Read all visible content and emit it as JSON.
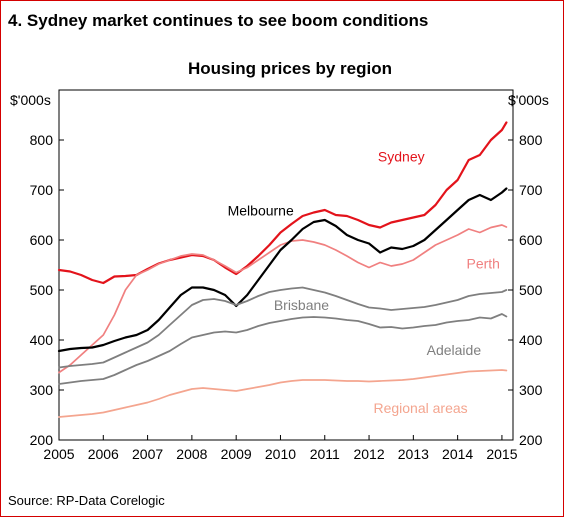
{
  "header": {
    "title": "4. Sydney market continues to see boom conditions"
  },
  "footer": {
    "source": "Source: RP-Data Corelogic"
  },
  "colors": {
    "frame": "#d40000",
    "sydney": "#e3131b",
    "perth": "#f08080",
    "melbourne": "#000000",
    "brisbane": "#7f7f7f",
    "adelaide": "#7f7f7f",
    "regional": "#f4a58f"
  },
  "chart_data": {
    "type": "line",
    "title": "Housing prices by region",
    "y_unit_left": "$'000s",
    "y_unit_right": "$'000s",
    "xlim": [
      2005,
      2015.25
    ],
    "ylim": [
      200,
      900
    ],
    "x_ticks": [
      "2005",
      "2006",
      "2007",
      "2008",
      "2009",
      "2010",
      "2011",
      "2012",
      "2013",
      "2014",
      "2015"
    ],
    "y_ticks": [
      "200",
      "300",
      "400",
      "500",
      "600",
      "700",
      "800"
    ],
    "grid": false,
    "series": [
      {
        "name": "Sydney",
        "color": "#e3131b",
        "width": 2.2,
        "points": [
          [
            2005,
            540
          ],
          [
            2005.25,
            537
          ],
          [
            2005.5,
            530
          ],
          [
            2005.75,
            520
          ],
          [
            2006,
            514
          ],
          [
            2006.25,
            527
          ],
          [
            2006.5,
            528
          ],
          [
            2006.75,
            530
          ],
          [
            2007,
            542
          ],
          [
            2007.25,
            553
          ],
          [
            2007.5,
            560
          ],
          [
            2007.75,
            565
          ],
          [
            2008,
            570
          ],
          [
            2008.25,
            568
          ],
          [
            2008.5,
            560
          ],
          [
            2008.75,
            545
          ],
          [
            2009,
            532
          ],
          [
            2009.25,
            548
          ],
          [
            2009.5,
            568
          ],
          [
            2009.75,
            590
          ],
          [
            2010,
            615
          ],
          [
            2010.25,
            632
          ],
          [
            2010.5,
            648
          ],
          [
            2010.75,
            655
          ],
          [
            2011,
            660
          ],
          [
            2011.25,
            650
          ],
          [
            2011.5,
            648
          ],
          [
            2011.75,
            640
          ],
          [
            2012,
            630
          ],
          [
            2012.25,
            625
          ],
          [
            2012.5,
            635
          ],
          [
            2012.75,
            640
          ],
          [
            2013,
            645
          ],
          [
            2013.25,
            650
          ],
          [
            2013.5,
            670
          ],
          [
            2013.75,
            700
          ],
          [
            2014,
            720
          ],
          [
            2014.25,
            760
          ],
          [
            2014.5,
            770
          ],
          [
            2014.75,
            800
          ],
          [
            2015,
            820
          ],
          [
            2015.1,
            835
          ]
        ]
      },
      {
        "name": "Perth",
        "color": "#f08080",
        "width": 1.7,
        "points": [
          [
            2005,
            335
          ],
          [
            2005.25,
            350
          ],
          [
            2005.5,
            370
          ],
          [
            2005.75,
            390
          ],
          [
            2006,
            410
          ],
          [
            2006.25,
            450
          ],
          [
            2006.5,
            500
          ],
          [
            2006.75,
            530
          ],
          [
            2007,
            540
          ],
          [
            2007.25,
            552
          ],
          [
            2007.5,
            560
          ],
          [
            2007.75,
            568
          ],
          [
            2008,
            572
          ],
          [
            2008.25,
            570
          ],
          [
            2008.5,
            560
          ],
          [
            2008.75,
            548
          ],
          [
            2009,
            535
          ],
          [
            2009.25,
            545
          ],
          [
            2009.5,
            560
          ],
          [
            2009.75,
            575
          ],
          [
            2010,
            590
          ],
          [
            2010.25,
            598
          ],
          [
            2010.5,
            600
          ],
          [
            2010.75,
            596
          ],
          [
            2011,
            590
          ],
          [
            2011.25,
            580
          ],
          [
            2011.5,
            568
          ],
          [
            2011.75,
            555
          ],
          [
            2012,
            545
          ],
          [
            2012.25,
            555
          ],
          [
            2012.5,
            548
          ],
          [
            2012.75,
            552
          ],
          [
            2013,
            560
          ],
          [
            2013.25,
            575
          ],
          [
            2013.5,
            590
          ],
          [
            2013.75,
            600
          ],
          [
            2014,
            610
          ],
          [
            2014.25,
            622
          ],
          [
            2014.5,
            615
          ],
          [
            2014.75,
            625
          ],
          [
            2015,
            630
          ],
          [
            2015.1,
            626
          ]
        ]
      },
      {
        "name": "Melbourne",
        "color": "#000000",
        "width": 2.2,
        "points": [
          [
            2005,
            378
          ],
          [
            2005.25,
            382
          ],
          [
            2005.5,
            384
          ],
          [
            2005.75,
            385
          ],
          [
            2006,
            390
          ],
          [
            2006.25,
            398
          ],
          [
            2006.5,
            405
          ],
          [
            2006.75,
            410
          ],
          [
            2007,
            420
          ],
          [
            2007.25,
            440
          ],
          [
            2007.5,
            465
          ],
          [
            2007.75,
            490
          ],
          [
            2008,
            505
          ],
          [
            2008.25,
            505
          ],
          [
            2008.5,
            500
          ],
          [
            2008.75,
            490
          ],
          [
            2009,
            468
          ],
          [
            2009.25,
            490
          ],
          [
            2009.5,
            520
          ],
          [
            2009.75,
            550
          ],
          [
            2010,
            580
          ],
          [
            2010.25,
            600
          ],
          [
            2010.5,
            622
          ],
          [
            2010.75,
            636
          ],
          [
            2011,
            640
          ],
          [
            2011.25,
            628
          ],
          [
            2011.5,
            610
          ],
          [
            2011.75,
            600
          ],
          [
            2012,
            593
          ],
          [
            2012.25,
            575
          ],
          [
            2012.5,
            585
          ],
          [
            2012.75,
            582
          ],
          [
            2013,
            588
          ],
          [
            2013.25,
            600
          ],
          [
            2013.5,
            620
          ],
          [
            2013.75,
            640
          ],
          [
            2014,
            660
          ],
          [
            2014.25,
            680
          ],
          [
            2014.5,
            690
          ],
          [
            2014.75,
            680
          ],
          [
            2015,
            695
          ],
          [
            2015.1,
            703
          ]
        ]
      },
      {
        "name": "Brisbane",
        "color": "#7f7f7f",
        "width": 1.8,
        "points": [
          [
            2005,
            345
          ],
          [
            2005.25,
            348
          ],
          [
            2005.5,
            350
          ],
          [
            2005.75,
            352
          ],
          [
            2006,
            355
          ],
          [
            2006.25,
            365
          ],
          [
            2006.5,
            375
          ],
          [
            2006.75,
            385
          ],
          [
            2007,
            395
          ],
          [
            2007.25,
            410
          ],
          [
            2007.5,
            430
          ],
          [
            2007.75,
            450
          ],
          [
            2008,
            470
          ],
          [
            2008.25,
            480
          ],
          [
            2008.5,
            482
          ],
          [
            2008.75,
            478
          ],
          [
            2009,
            470
          ],
          [
            2009.25,
            478
          ],
          [
            2009.5,
            488
          ],
          [
            2009.75,
            496
          ],
          [
            2010,
            500
          ],
          [
            2010.25,
            503
          ],
          [
            2010.5,
            505
          ],
          [
            2010.75,
            500
          ],
          [
            2011,
            495
          ],
          [
            2011.25,
            488
          ],
          [
            2011.5,
            480
          ],
          [
            2011.75,
            472
          ],
          [
            2012,
            465
          ],
          [
            2012.25,
            463
          ],
          [
            2012.5,
            460
          ],
          [
            2012.75,
            462
          ],
          [
            2013,
            464
          ],
          [
            2013.25,
            466
          ],
          [
            2013.5,
            470
          ],
          [
            2013.75,
            475
          ],
          [
            2014,
            480
          ],
          [
            2014.25,
            488
          ],
          [
            2014.5,
            492
          ],
          [
            2014.75,
            494
          ],
          [
            2015,
            496
          ],
          [
            2015.1,
            500
          ]
        ]
      },
      {
        "name": "Adelaide",
        "color": "#7f7f7f",
        "width": 1.8,
        "points": [
          [
            2005,
            312
          ],
          [
            2005.25,
            315
          ],
          [
            2005.5,
            318
          ],
          [
            2005.75,
            320
          ],
          [
            2006,
            322
          ],
          [
            2006.25,
            330
          ],
          [
            2006.5,
            340
          ],
          [
            2006.75,
            350
          ],
          [
            2007,
            358
          ],
          [
            2007.25,
            368
          ],
          [
            2007.5,
            378
          ],
          [
            2007.75,
            392
          ],
          [
            2008,
            405
          ],
          [
            2008.25,
            410
          ],
          [
            2008.5,
            415
          ],
          [
            2008.75,
            417
          ],
          [
            2009,
            415
          ],
          [
            2009.25,
            420
          ],
          [
            2009.5,
            428
          ],
          [
            2009.75,
            434
          ],
          [
            2010,
            438
          ],
          [
            2010.25,
            442
          ],
          [
            2010.5,
            445
          ],
          [
            2010.75,
            446
          ],
          [
            2011,
            445
          ],
          [
            2011.25,
            443
          ],
          [
            2011.5,
            440
          ],
          [
            2011.75,
            438
          ],
          [
            2012,
            432
          ],
          [
            2012.25,
            425
          ],
          [
            2012.5,
            426
          ],
          [
            2012.75,
            423
          ],
          [
            2013,
            425
          ],
          [
            2013.25,
            428
          ],
          [
            2013.5,
            430
          ],
          [
            2013.75,
            435
          ],
          [
            2014,
            438
          ],
          [
            2014.25,
            440
          ],
          [
            2014.5,
            445
          ],
          [
            2014.75,
            443
          ],
          [
            2015,
            452
          ],
          [
            2015.1,
            447
          ]
        ]
      },
      {
        "name": "Regional areas",
        "color": "#f4a58f",
        "width": 1.7,
        "points": [
          [
            2005,
            246
          ],
          [
            2005.25,
            248
          ],
          [
            2005.5,
            250
          ],
          [
            2005.75,
            252
          ],
          [
            2006,
            255
          ],
          [
            2006.25,
            260
          ],
          [
            2006.5,
            265
          ],
          [
            2006.75,
            270
          ],
          [
            2007,
            275
          ],
          [
            2007.25,
            282
          ],
          [
            2007.5,
            290
          ],
          [
            2007.75,
            296
          ],
          [
            2008,
            302
          ],
          [
            2008.25,
            304
          ],
          [
            2008.5,
            302
          ],
          [
            2008.75,
            300
          ],
          [
            2009,
            298
          ],
          [
            2009.25,
            302
          ],
          [
            2009.5,
            306
          ],
          [
            2009.75,
            310
          ],
          [
            2010,
            315
          ],
          [
            2010.25,
            318
          ],
          [
            2010.5,
            320
          ],
          [
            2010.75,
            320
          ],
          [
            2011,
            320
          ],
          [
            2011.25,
            319
          ],
          [
            2011.5,
            318
          ],
          [
            2011.75,
            318
          ],
          [
            2012,
            317
          ],
          [
            2012.25,
            318
          ],
          [
            2012.5,
            319
          ],
          [
            2012.75,
            320
          ],
          [
            2013,
            322
          ],
          [
            2013.25,
            325
          ],
          [
            2013.5,
            328
          ],
          [
            2013.75,
            331
          ],
          [
            2014,
            334
          ],
          [
            2014.25,
            337
          ],
          [
            2014.5,
            338
          ],
          [
            2014.75,
            339
          ],
          [
            2015,
            340
          ],
          [
            2015.1,
            339
          ]
        ]
      }
    ],
    "annotations": [
      {
        "text": "Sydney",
        "color": "#e3131b",
        "x": 2012.2,
        "y": 757,
        "anchor": "start"
      },
      {
        "text": "Melbourne",
        "color": "#000000",
        "x": 2010.3,
        "y": 649,
        "anchor": "end"
      },
      {
        "text": "Perth",
        "color": "#f08080",
        "x": 2014.2,
        "y": 543,
        "anchor": "start"
      },
      {
        "text": "Brisbane",
        "color": "#7f7f7f",
        "x": 2009.85,
        "y": 460,
        "anchor": "start"
      },
      {
        "text": "Adelaide",
        "color": "#7f7f7f",
        "x": 2013.3,
        "y": 370,
        "anchor": "start"
      },
      {
        "text": "Regional areas",
        "color": "#f4a58f",
        "x": 2012.1,
        "y": 254,
        "anchor": "start"
      }
    ]
  }
}
